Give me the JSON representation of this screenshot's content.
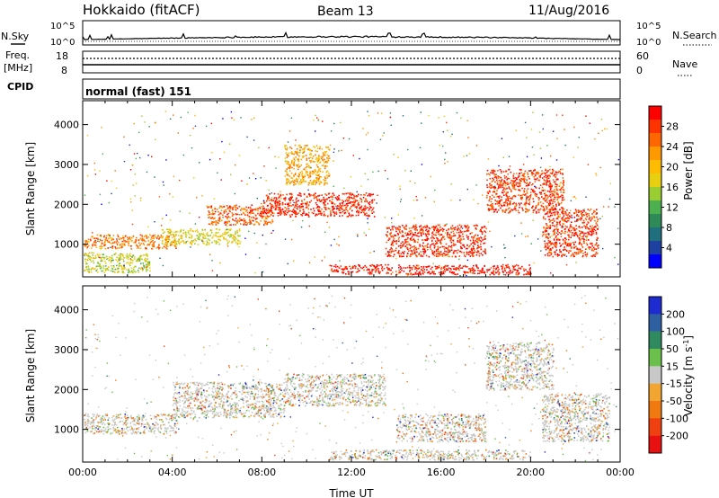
{
  "header": {
    "station": "Hokkaido (fitACF)",
    "beam": "Beam 13",
    "date": "11/Aug/2016"
  },
  "noise_panel": {
    "left_label": "N.Sky",
    "right_label": "N.Search",
    "ticks": [
      "10^5",
      "10^0"
    ]
  },
  "freq_panel": {
    "left_label_1": "Freq.",
    "left_label_2": "[MHz]",
    "left_ticks": [
      "18",
      "8"
    ],
    "right_label": "Nave",
    "right_ticks": [
      "60",
      "0"
    ]
  },
  "cpid_panel": {
    "left_label": "CPID",
    "mode": "normal (fast) 151"
  },
  "chart_data": [
    {
      "type": "heatmap",
      "name": "power-panel",
      "ylabel": "Slant Range [km]",
      "xlabel": "",
      "ylim": [
        180,
        4600
      ],
      "xlim": [
        0,
        24
      ],
      "y_ticks": [
        1000,
        2000,
        3000,
        4000
      ],
      "colorbar": {
        "label": "Power [dB]",
        "ticks": [
          "28",
          "24",
          "20",
          "16",
          "12",
          "8",
          "4"
        ],
        "colors": [
          "#ff0000",
          "#ff3300",
          "#ff6600",
          "#ff9900",
          "#ffbb00",
          "#e8d010",
          "#9acd32",
          "#4caf50",
          "#2e8b57",
          "#1f6f7f",
          "#1e40a0",
          "#0000ff"
        ]
      },
      "regions": [
        {
          "t": [
            0,
            4.2
          ],
          "r": [
            900,
            1250
          ],
          "level": 0.78
        },
        {
          "t": [
            3.5,
            7
          ],
          "r": [
            1000,
            1400
          ],
          "level": 0.55
        },
        {
          "t": [
            5.5,
            8.5
          ],
          "r": [
            1500,
            2000
          ],
          "level": 0.85
        },
        {
          "t": [
            8,
            13
          ],
          "r": [
            1700,
            2300
          ],
          "level": 0.95
        },
        {
          "t": [
            9,
            11
          ],
          "r": [
            2500,
            3500
          ],
          "level": 0.7
        },
        {
          "t": [
            13.5,
            18
          ],
          "r": [
            700,
            1500
          ],
          "level": 0.92
        },
        {
          "t": [
            11,
            20
          ],
          "r": [
            250,
            500
          ],
          "level": 0.98
        },
        {
          "t": [
            18,
            21.5
          ],
          "r": [
            1800,
            2900
          ],
          "level": 0.9
        },
        {
          "t": [
            20.5,
            23
          ],
          "r": [
            700,
            1900
          ],
          "level": 0.9
        },
        {
          "t": [
            0,
            3
          ],
          "r": [
            300,
            800
          ],
          "level": 0.5
        }
      ]
    },
    {
      "type": "heatmap",
      "name": "velocity-panel",
      "ylabel": "Slant Range [km]",
      "xlabel": "Time UT",
      "ylim": [
        180,
        4600
      ],
      "xlim": [
        0,
        24
      ],
      "y_ticks": [
        1000,
        2000,
        3000,
        4000
      ],
      "x_ticks": [
        "00:00",
        "04:00",
        "08:00",
        "12:00",
        "16:00",
        "20:00",
        "00:00"
      ],
      "colorbar": {
        "label": "Velocity [m s^-1]",
        "ticks": [
          "200",
          "100",
          "50",
          "15",
          "-15",
          "-50",
          "-100",
          "-200"
        ],
        "colors": [
          "#1e2bd0",
          "#2e5fa0",
          "#2f8a60",
          "#6ac04a",
          "#c8c8c8",
          "#f2a530",
          "#f07a10",
          "#f04010",
          "#e81010"
        ]
      },
      "regions": [
        {
          "t": [
            0,
            4.2
          ],
          "r": [
            900,
            1400
          ],
          "level": 0.5
        },
        {
          "t": [
            4,
            9
          ],
          "r": [
            1300,
            2200
          ],
          "level": 0.45
        },
        {
          "t": [
            9,
            13.5
          ],
          "r": [
            1600,
            2400
          ],
          "level": 0.48
        },
        {
          "t": [
            14,
            18
          ],
          "r": [
            700,
            1400
          ],
          "level": 0.4
        },
        {
          "t": [
            11,
            20
          ],
          "r": [
            250,
            500
          ],
          "level": 0.62
        },
        {
          "t": [
            18,
            21
          ],
          "r": [
            2000,
            3200
          ],
          "level": 0.48
        },
        {
          "t": [
            20.5,
            23.5
          ],
          "r": [
            700,
            1900
          ],
          "level": 0.47
        }
      ]
    }
  ]
}
